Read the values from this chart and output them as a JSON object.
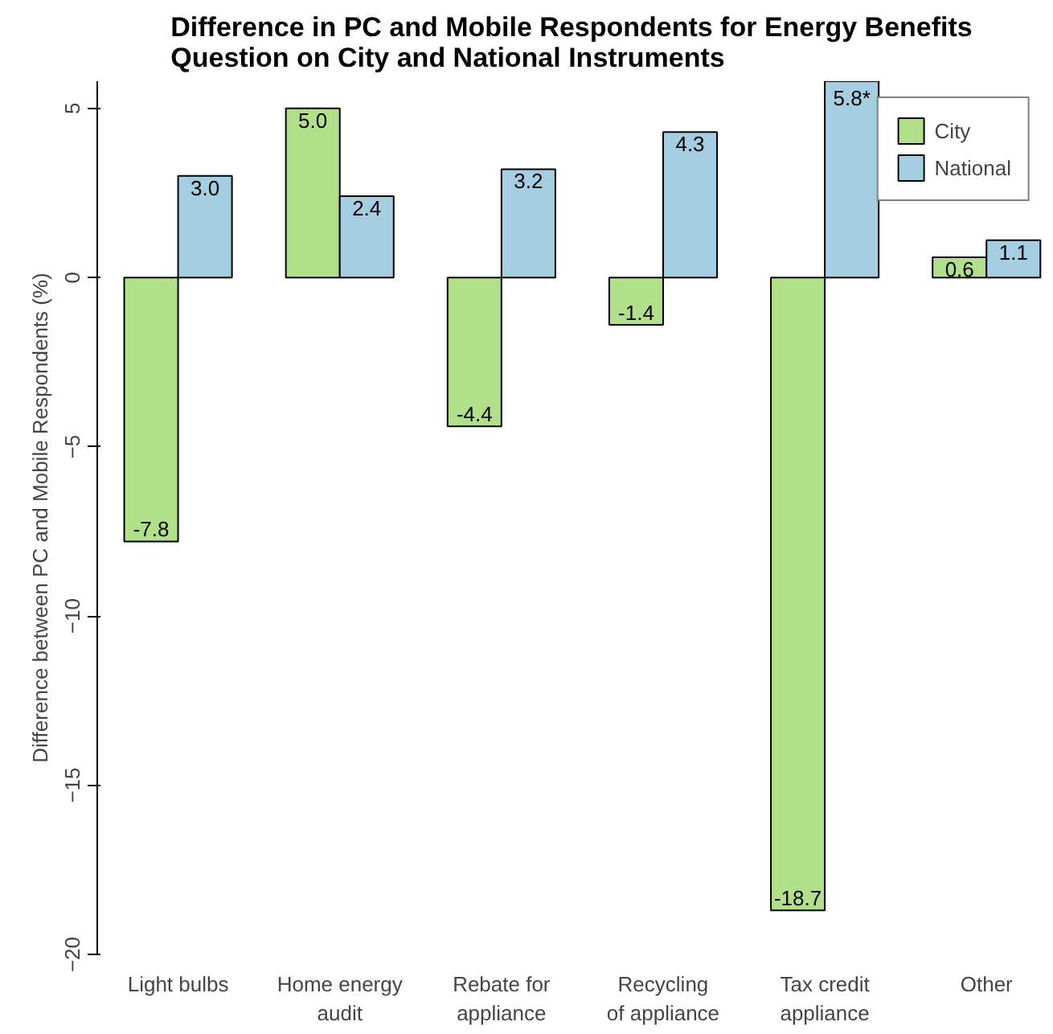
{
  "chart_data": {
    "type": "bar",
    "title": "Difference in PC and Mobile Respondents for Energy Benefits\nQuestion on City and National Instruments",
    "ylabel": "Difference between PC and Mobile Respondents (%)",
    "categories": [
      "Light bulbs",
      "Home energy\naudit",
      "Rebate for\nappliance",
      "Recycling\nof appliance",
      "Tax credit\nappliance",
      "Other"
    ],
    "series": [
      {
        "name": "City",
        "color": "#b2df8a",
        "values": [
          -7.8,
          5.0,
          -4.4,
          -1.4,
          -18.7,
          0.6
        ],
        "value_labels": [
          "-7.8",
          "5.0",
          "-4.4",
          "-1.4",
          "-18.7",
          "0.6"
        ]
      },
      {
        "name": "National",
        "color": "#a6cee3",
        "values": [
          3.0,
          2.4,
          3.2,
          4.3,
          5.8,
          1.1
        ],
        "value_labels": [
          "3.0",
          "2.4",
          "3.2",
          "4.3",
          "5.8*",
          "1.1"
        ]
      }
    ],
    "ylim": [
      -20,
      5.8
    ],
    "yticks": [
      -20,
      -15,
      -10,
      -5,
      0,
      5
    ],
    "grid": false,
    "legend": "top right"
  }
}
